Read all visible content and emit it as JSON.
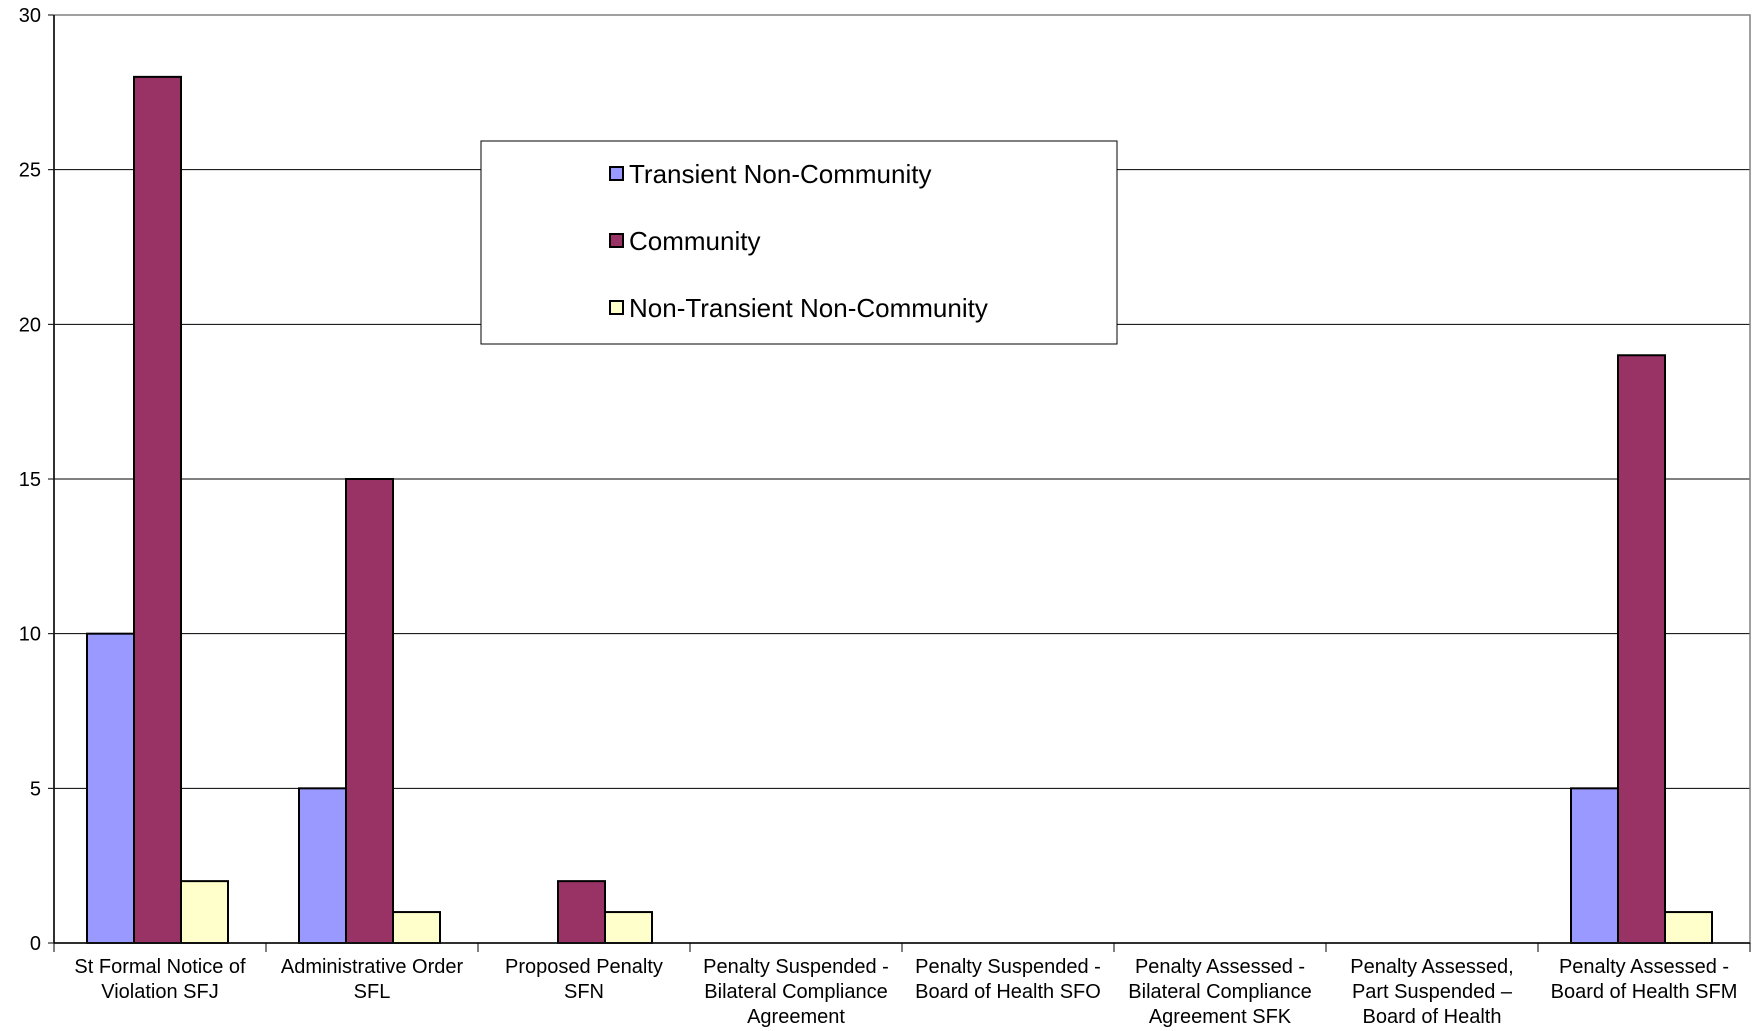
{
  "chart_data": {
    "type": "bar",
    "categories": [
      [
        "St Formal Notice of",
        "Violation SFJ"
      ],
      [
        "Administrative Order",
        "SFL"
      ],
      [
        "Proposed Penalty",
        "SFN"
      ],
      [
        "Penalty Suspended -",
        "Bilateral Compliance",
        "Agreement"
      ],
      [
        "Penalty Suspended -",
        "Board of Health SFO"
      ],
      [
        "Penalty Assessed -",
        "Bilateral Compliance",
        "Agreement SFK"
      ],
      [
        "Penalty Assessed,",
        "Part Suspended –",
        "Board of Health"
      ],
      [
        "Penalty Assessed -",
        "Board of Health SFM"
      ]
    ],
    "series": [
      {
        "name": "Transient Non-Community",
        "color": "#9999ff",
        "values": [
          10,
          5,
          0,
          0,
          0,
          0,
          0,
          5
        ]
      },
      {
        "name": "Community",
        "color": "#993366",
        "values": [
          28,
          15,
          2,
          0,
          0,
          0,
          0,
          19
        ]
      },
      {
        "name": "Non-Transient Non-Community",
        "color": "#ffffcc",
        "values": [
          2,
          1,
          1,
          0,
          0,
          0,
          0,
          1
        ]
      }
    ],
    "title": "",
    "xlabel": "",
    "ylabel": "",
    "ylim": [
      0,
      30
    ],
    "yticks": [
      "0",
      "5",
      "10",
      "15",
      "20",
      "25",
      "30"
    ],
    "grid": true,
    "legend_position": "top-center"
  }
}
